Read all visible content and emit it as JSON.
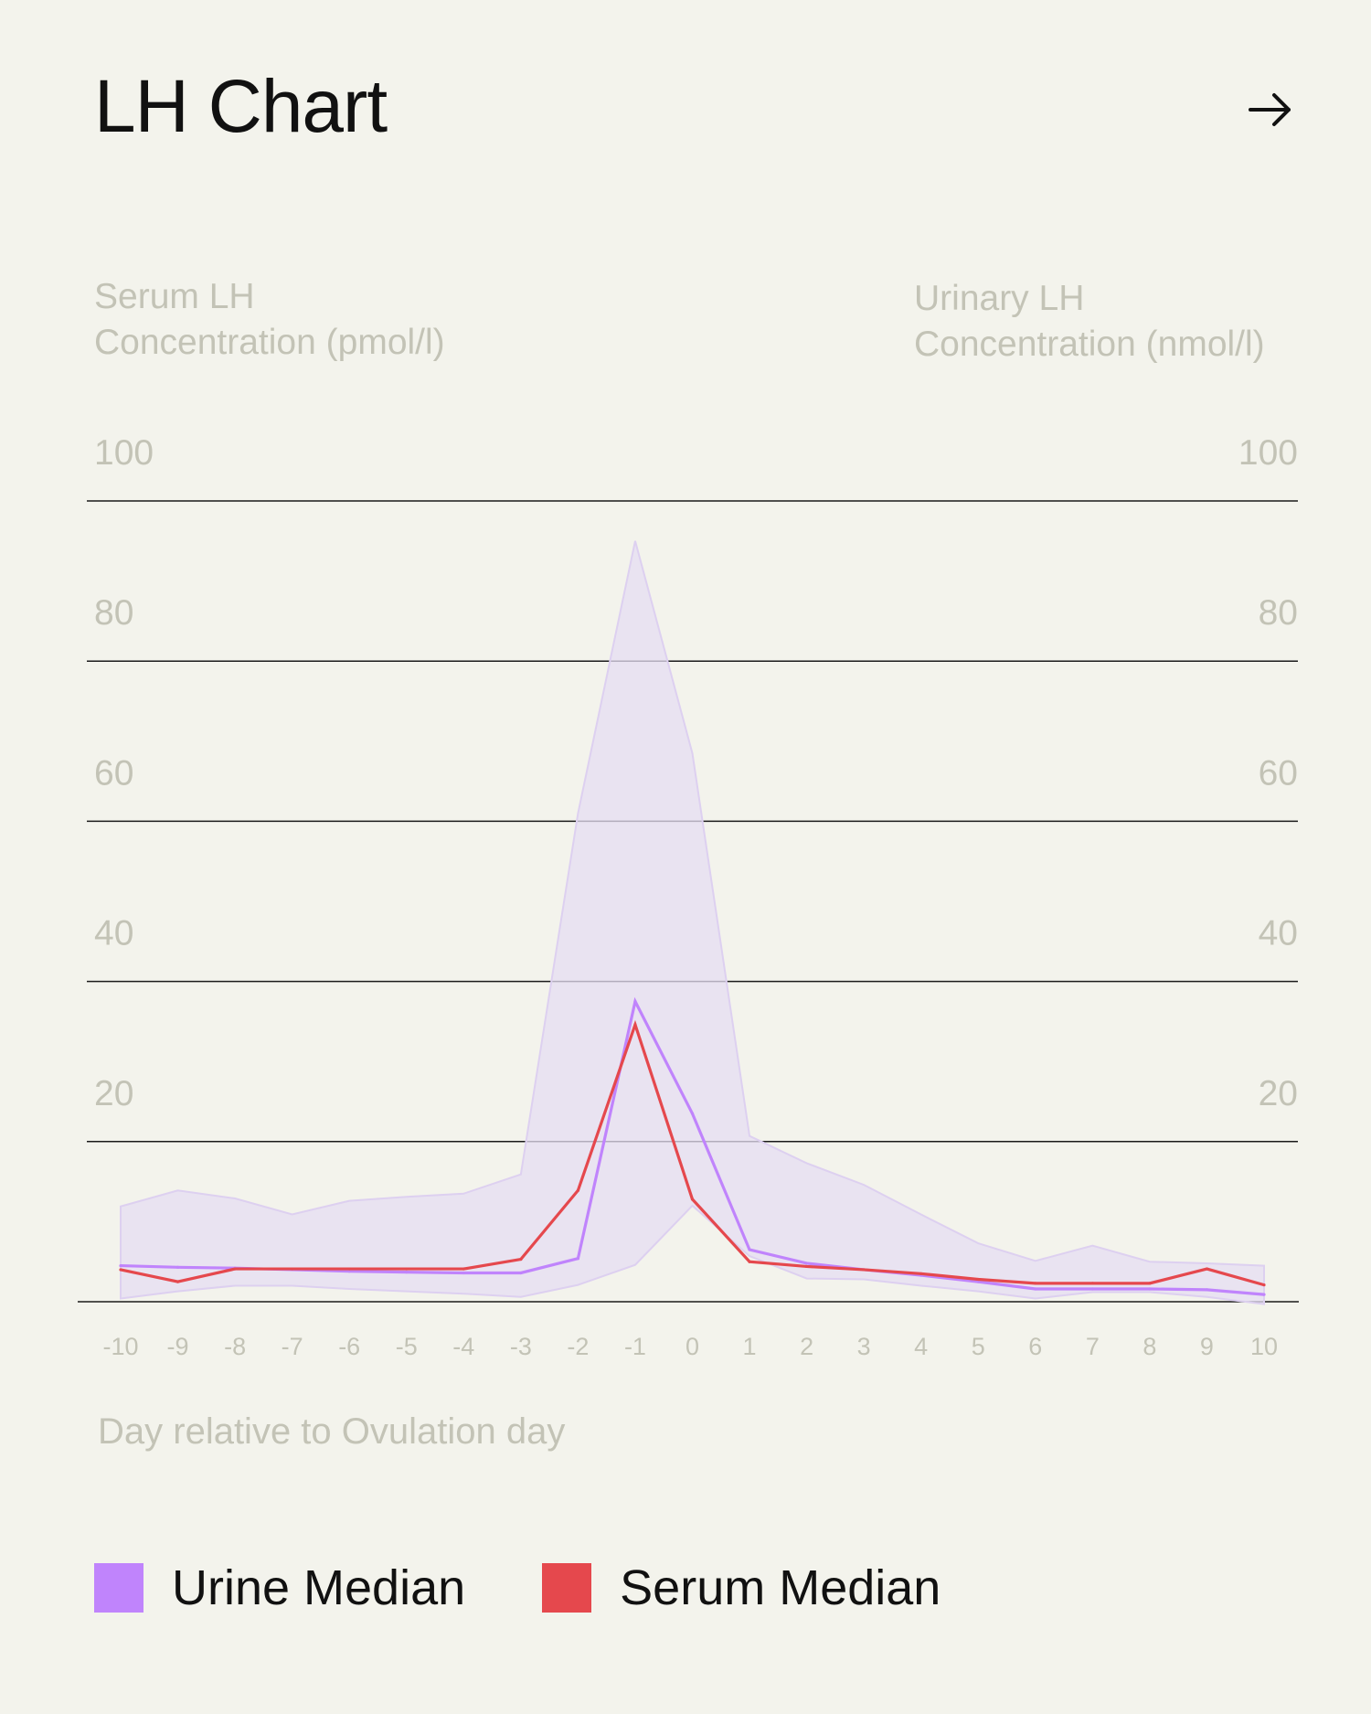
{
  "title": "LH Chart",
  "icons": {
    "arrow": "arrow-right-icon"
  },
  "colors": {
    "background": "#f3f3ec",
    "urine": "#c084fc",
    "serum": "#e5484d",
    "band": "#e6ddf3",
    "axis_text": "#c3c3b6"
  },
  "chart_data": {
    "type": "line",
    "title": "LH Chart",
    "ylabel_left": [
      "Serum LH",
      "Concentration (pmol/l)"
    ],
    "ylabel_right": [
      "Urinary LH",
      "Concentration (nmol/l)"
    ],
    "xlabel": "Day relative to Ovulation day",
    "x": [
      -10,
      -9,
      -8,
      -7,
      -6,
      -5,
      -4,
      -3,
      -2,
      -1,
      0,
      1,
      2,
      3,
      4,
      5,
      6,
      7,
      8,
      9,
      10
    ],
    "x_tick_labels": [
      "-10",
      "-9",
      "-8",
      "-7",
      "-6",
      "-5",
      "-4",
      "-3",
      "-2",
      "-1",
      "0",
      "1",
      "2",
      "3",
      "4",
      "5",
      "6",
      "7",
      "8",
      "9",
      "10"
    ],
    "y_ticks": [
      100,
      80,
      60,
      40,
      20
    ],
    "ylim": [
      0,
      100
    ],
    "grid": true,
    "legend_placement": "bottom-left",
    "series": [
      {
        "name": "Urine Median",
        "color": "#c084fc",
        "values": [
          4.5,
          4.3,
          4.2,
          4.0,
          3.8,
          3.7,
          3.6,
          3.6,
          5.4,
          37.5,
          23.5,
          6.5,
          4.8,
          4.0,
          3.3,
          2.5,
          1.6,
          1.6,
          1.6,
          1.5,
          0.9
        ]
      },
      {
        "name": "Serum Median",
        "color": "#e5484d",
        "values": [
          4.0,
          2.5,
          4.1,
          4.1,
          4.1,
          4.1,
          4.1,
          5.3,
          13.9,
          34.6,
          12.8,
          5.0,
          4.4,
          4.0,
          3.5,
          2.8,
          2.3,
          2.3,
          2.3,
          4.1,
          2.1
        ]
      }
    ],
    "band": {
      "upper": [
        11.9,
        13.9,
        12.9,
        10.9,
        12.6,
        13.1,
        13.5,
        15.9,
        61.0,
        95.0,
        68.5,
        20.7,
        17.3,
        14.6,
        10.9,
        7.3,
        5.1,
        7.0,
        5.0,
        4.8,
        4.5
      ],
      "lower": [
        0.4,
        1.3,
        2.0,
        2.0,
        1.6,
        1.3,
        1.0,
        0.6,
        2.1,
        4.6,
        12.0,
        5.7,
        2.9,
        2.8,
        2.0,
        1.3,
        0.4,
        1.2,
        1.2,
        0.6,
        -0.3
      ]
    }
  },
  "legend": [
    {
      "label": "Urine Median",
      "color": "#c084fc"
    },
    {
      "label": "Serum Median",
      "color": "#e5484d"
    }
  ]
}
